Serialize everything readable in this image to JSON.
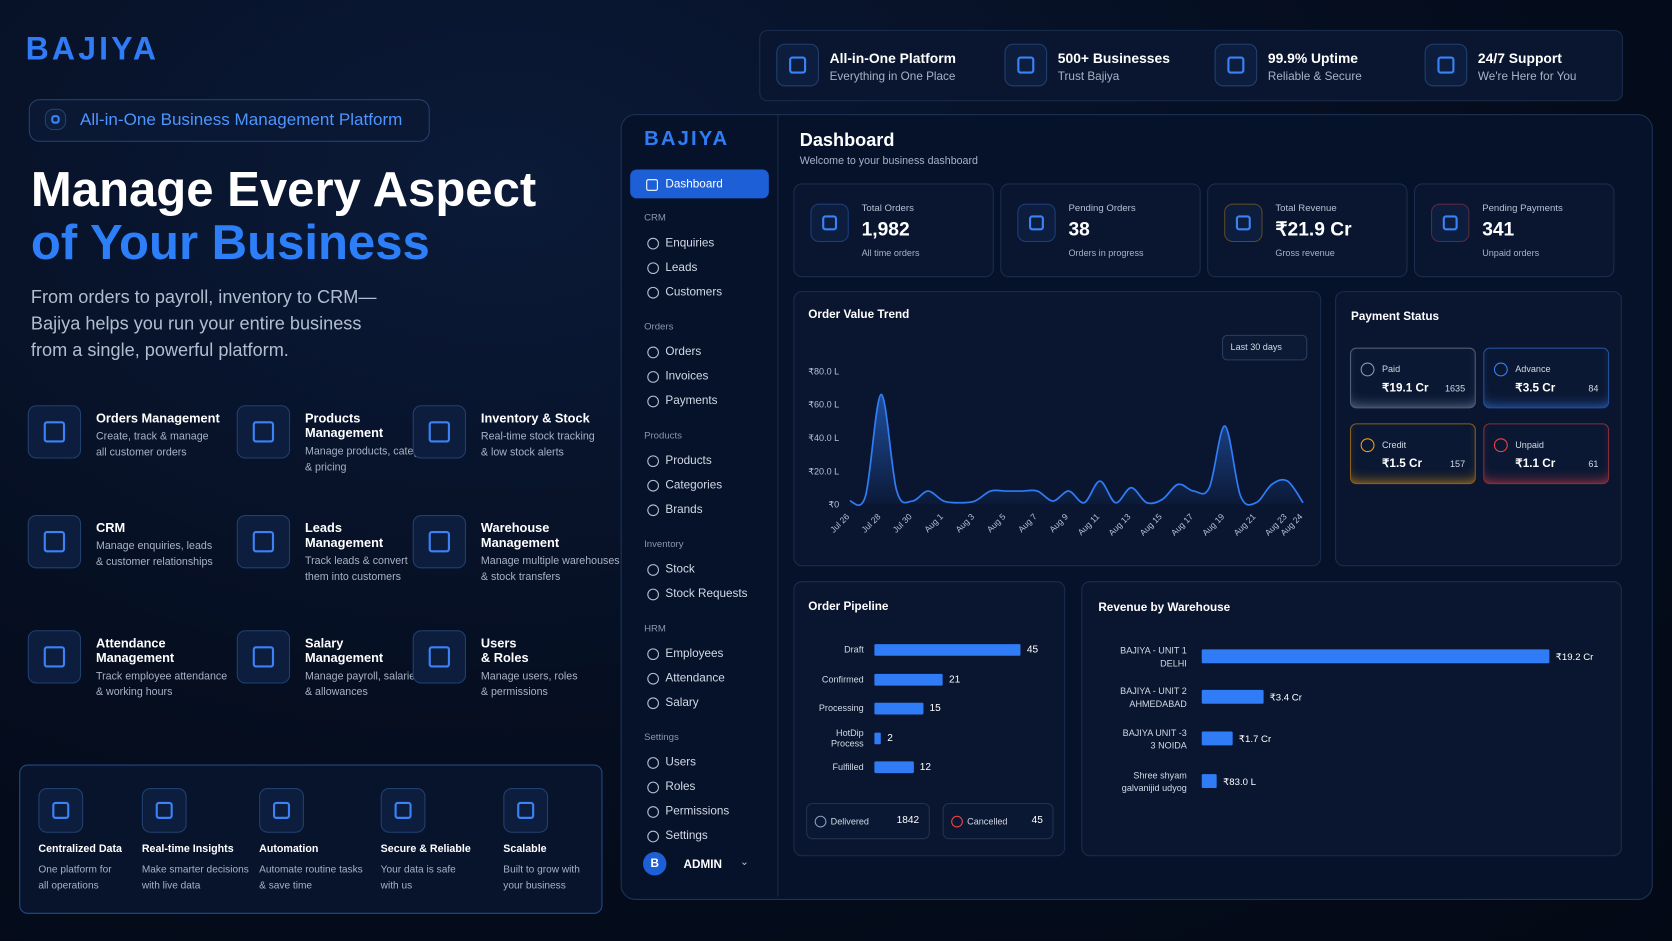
{
  "brand": "BAJIYA",
  "badge": "All-in-One Business Management Platform",
  "headline": [
    "Manage Every Aspect",
    "of Your Business"
  ],
  "intro": [
    "From orders to payroll, inventory to CRM—",
    "Bajiya helps you run your entire business",
    "from a single, powerful platform."
  ],
  "features": [
    {
      "title": [
        "Orders Management"
      ],
      "desc": [
        "Create, track & manage",
        "all customer orders"
      ]
    },
    {
      "title": [
        "Products",
        "Management"
      ],
      "desc": [
        "Manage products, categories",
        "& pricing"
      ]
    },
    {
      "title": [
        "Inventory & Stock"
      ],
      "desc": [
        "Real-time stock tracking",
        "& low stock alerts"
      ]
    },
    {
      "title": [
        "CRM"
      ],
      "desc": [
        "Manage enquiries, leads",
        "& customer relationships"
      ]
    },
    {
      "title": [
        "Leads",
        "Management"
      ],
      "desc": [
        "Track leads & convert",
        "them into customers"
      ]
    },
    {
      "title": [
        "Warehouse",
        "Management"
      ],
      "desc": [
        "Manage multiple warehouses",
        "& stock transfers"
      ]
    },
    {
      "title": [
        "Attendance",
        "Management"
      ],
      "desc": [
        "Track employee attendance",
        "& working hours"
      ]
    },
    {
      "title": [
        "Salary",
        "Management"
      ],
      "desc": [
        "Manage payroll, salaries",
        "& allowances"
      ]
    },
    {
      "title": [
        "Users",
        "& Roles"
      ],
      "desc": [
        "Manage users, roles",
        "& permissions"
      ]
    }
  ],
  "benefits": [
    {
      "title": "Centralized Data",
      "desc": [
        "One platform for",
        "all operations"
      ]
    },
    {
      "title": "Real-time Insights",
      "desc": [
        "Make smarter decisions",
        "with live data"
      ]
    },
    {
      "title": "Automation",
      "desc": [
        "Automate routine tasks",
        "& save time"
      ]
    },
    {
      "title": "Secure & Reliable",
      "desc": [
        "Your data is safe",
        "with us"
      ]
    },
    {
      "title": "Scalable",
      "desc": [
        "Built to grow with",
        "your business"
      ]
    }
  ],
  "highlights": [
    {
      "title": "All-in-One Platform",
      "subtitle": "Everything in One Place"
    },
    {
      "title": "500+ Businesses",
      "subtitle": "Trust Bajiya"
    },
    {
      "title": "99.9% Uptime",
      "subtitle": "Reliable & Secure"
    },
    {
      "title": "24/7 Support",
      "subtitle": "We're Here for You"
    }
  ],
  "dashboard": {
    "logo": "BAJIYA",
    "title": "Dashboard",
    "subtitle": "Welcome to your business dashboard",
    "nav_active": "Dashboard",
    "nav_sections": [
      {
        "title": "CRM",
        "items": [
          "Enquiries",
          "Leads",
          "Customers"
        ]
      },
      {
        "title": "Orders",
        "items": [
          "Orders",
          "Invoices",
          "Payments"
        ]
      },
      {
        "title": "Products",
        "items": [
          "Products",
          "Categories",
          "Brands"
        ]
      },
      {
        "title": "Inventory",
        "items": [
          "Stock",
          "Stock Requests"
        ]
      },
      {
        "title": "HRM",
        "items": [
          "Employees",
          "Attendance",
          "Salary"
        ]
      },
      {
        "title": "Settings",
        "items": [
          "Users",
          "Roles",
          "Permissions",
          "Settings"
        ]
      }
    ],
    "user": {
      "initial": "B",
      "name": "ADMIN"
    },
    "stats": [
      {
        "label": "Total Orders",
        "value": "1,982",
        "note": "All time orders",
        "color": "#3b82f6"
      },
      {
        "label": "Pending Orders",
        "value": "38",
        "note": "Orders in progress",
        "color": "#3b82f6"
      },
      {
        "label": "Total Revenue",
        "value": "₹21.9 Cr",
        "note": "Gross revenue",
        "color": "#f59e0b"
      },
      {
        "label": "Pending Payments",
        "value": "341",
        "note": "Unpaid orders",
        "color": "#ef4444"
      }
    ],
    "order_value_trend": {
      "type": "line",
      "title": "Order Value Trend",
      "range": "Last 30 days",
      "categories": [
        "Jul 26",
        null,
        "Jul 28",
        null,
        "Jul 30",
        null,
        "Aug 1",
        null,
        "Aug 3",
        null,
        "Aug 5",
        null,
        "Aug 7",
        null,
        "Aug 9",
        null,
        "Aug 11",
        null,
        "Aug 13",
        null,
        "Aug 15",
        null,
        "Aug 17",
        null,
        "Aug 19",
        null,
        "Aug 21",
        null,
        "Aug 23",
        "Aug 24"
      ],
      "values": [
        2,
        5,
        66,
        8,
        2,
        8,
        2,
        1,
        2,
        8,
        8,
        8,
        8,
        2,
        8,
        1,
        14,
        1,
        10,
        1,
        3,
        12,
        8,
        10,
        47,
        5,
        1,
        12,
        14,
        1
      ],
      "ylim": [
        0,
        80
      ],
      "yticks": [
        {
          "value": 0,
          "label": "₹0"
        },
        {
          "value": 20,
          "label": "₹20.0 L"
        },
        {
          "value": 40,
          "label": "₹40.0 L"
        },
        {
          "value": 60,
          "label": "₹60.0 L"
        },
        {
          "value": 80,
          "label": "₹80.0 L"
        }
      ],
      "color": "#2f7cf6"
    },
    "payment_status": {
      "title": "Payment Status",
      "cards": [
        {
          "label": "Paid",
          "amount": "₹19.1 Cr",
          "count": 1635,
          "color": "#8a9bb8"
        },
        {
          "label": "Advance",
          "amount": "₹3.5 Cr",
          "count": 84,
          "color": "#3b82f6"
        },
        {
          "label": "Credit",
          "amount": "₹1.5 Cr",
          "count": 157,
          "color": "#f59e0b"
        },
        {
          "label": "Unpaid",
          "amount": "₹1.1 Cr",
          "count": 61,
          "color": "#ef4444"
        }
      ]
    },
    "order_pipeline": {
      "type": "bar",
      "title": "Order Pipeline",
      "categories": [
        "Draft",
        "Confirmed",
        "Processing",
        "HotDip Process",
        "Fulfilled"
      ],
      "values": [
        45,
        21,
        15,
        2,
        12
      ],
      "color": "#2f7cf6",
      "summary": [
        {
          "label": "Delivered",
          "value": 1842,
          "color": "#8a9bb8"
        },
        {
          "label": "Cancelled",
          "value": 45,
          "color": "#ef4444"
        }
      ]
    },
    "revenue_by_warehouse": {
      "type": "bar",
      "title": "Revenue by Warehouse",
      "categories": [
        [
          "BAJIYA - UNIT 1",
          "DELHI"
        ],
        [
          "BAJIYA - UNIT 2",
          "AHMEDABAD"
        ],
        [
          "BAJIYA UNIT -3",
          "3 NOIDA"
        ],
        [
          "Shree shyam",
          "galvanijid udyog"
        ]
      ],
      "values": [
        19.2,
        3.4,
        1.7,
        0.83
      ],
      "value_labels": [
        "₹19.2 Cr",
        "₹3.4 Cr",
        "₹1.7 Cr",
        "₹83.0 L"
      ],
      "color": "#2f7cf6"
    }
  }
}
